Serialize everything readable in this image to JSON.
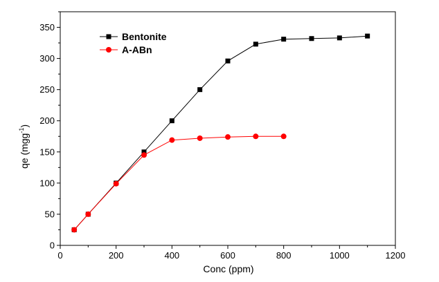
{
  "chart_data": {
    "type": "line",
    "title": "",
    "xlabel": "Conc (ppm)",
    "ylabel_main": "qe (mgg",
    "ylabel_sup": "-1",
    "ylabel_close": ")",
    "xlim": [
      0,
      1200
    ],
    "ylim": [
      0,
      375
    ],
    "xticks": [
      0,
      200,
      400,
      600,
      800,
      1000,
      1200
    ],
    "yticks": [
      0,
      50,
      100,
      150,
      200,
      250,
      300,
      350
    ],
    "grid": false,
    "legend_position": "top-left",
    "series": [
      {
        "name": "Bentonite",
        "color": "#000000",
        "marker": "square",
        "points": [
          [
            50,
            25
          ],
          [
            100,
            50
          ],
          [
            200,
            100
          ],
          [
            300,
            150
          ],
          [
            400,
            200
          ],
          [
            500,
            250
          ],
          [
            600,
            296
          ],
          [
            700,
            323
          ],
          [
            800,
            331
          ],
          [
            900,
            332
          ],
          [
            1000,
            333
          ],
          [
            1100,
            336
          ]
        ]
      },
      {
        "name": "A-ABn",
        "color": "#ff0000",
        "marker": "circle",
        "points": [
          [
            50,
            25
          ],
          [
            100,
            50
          ],
          [
            200,
            99
          ],
          [
            300,
            145
          ],
          [
            400,
            169
          ],
          [
            500,
            172
          ],
          [
            600,
            174
          ],
          [
            700,
            175
          ],
          [
            800,
            175
          ]
        ]
      }
    ]
  }
}
